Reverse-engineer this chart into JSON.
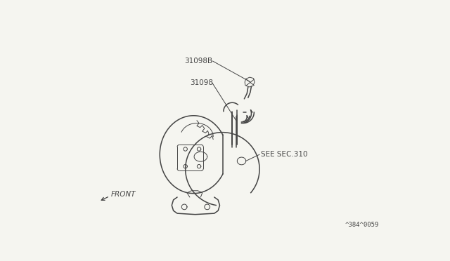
{
  "bg_color": "#f5f5f0",
  "line_color": "#444444",
  "text_color": "#444444",
  "label_31098B": "31098B",
  "label_31098": "31098",
  "label_see_sec": "SEE SEC.310",
  "label_front": "FRONT",
  "label_part_no": "^384^0059",
  "lw": 1.1,
  "tlw": 0.7,
  "fs": 7.5
}
